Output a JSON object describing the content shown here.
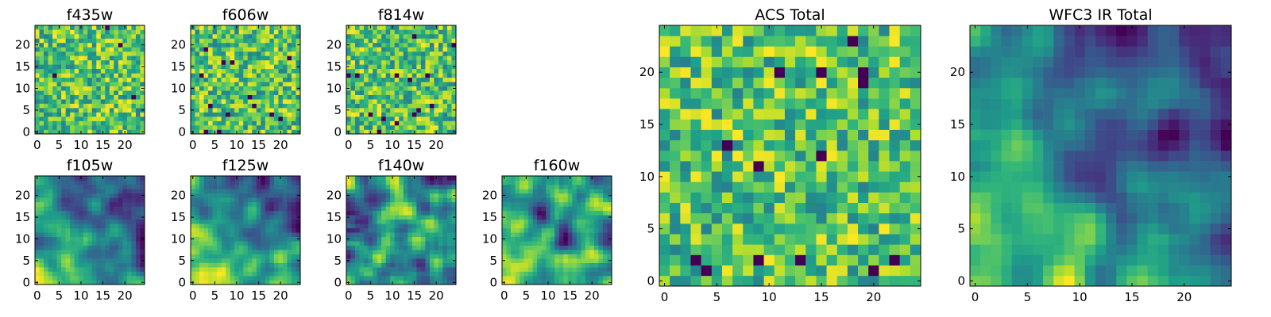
{
  "colormap": "viridis",
  "chart_data": [
    {
      "type": "heatmap",
      "title": "f435w",
      "grid": [
        25,
        25
      ],
      "xticks": [
        0,
        5,
        10,
        15,
        20
      ],
      "yticks": [
        0,
        5,
        10,
        15,
        20
      ],
      "xlim": [
        -0.5,
        24.5
      ],
      "ylim": [
        -0.5,
        24.5
      ],
      "pattern": "noise"
    },
    {
      "type": "heatmap",
      "title": "f606w",
      "grid": [
        25,
        25
      ],
      "xticks": [
        0,
        5,
        10,
        15,
        20
      ],
      "yticks": [
        0,
        5,
        10,
        15,
        20
      ],
      "xlim": [
        -0.5,
        24.5
      ],
      "ylim": [
        -0.5,
        24.5
      ],
      "pattern": "noise"
    },
    {
      "type": "heatmap",
      "title": "f814w",
      "grid": [
        25,
        25
      ],
      "xticks": [
        0,
        5,
        10,
        15,
        20
      ],
      "yticks": [
        0,
        5,
        10,
        15,
        20
      ],
      "xlim": [
        -0.5,
        24.5
      ],
      "ylim": [
        -0.5,
        24.5
      ],
      "pattern": "noise"
    },
    {
      "type": "heatmap",
      "title": "f105w",
      "grid": [
        25,
        25
      ],
      "xticks": [
        0,
        5,
        10,
        15,
        20
      ],
      "yticks": [
        0,
        5,
        10,
        15,
        20
      ],
      "xlim": [
        -0.5,
        24.5
      ],
      "ylim": [
        -0.5,
        24.5
      ],
      "pattern": "smooth-gradient"
    },
    {
      "type": "heatmap",
      "title": "f125w",
      "grid": [
        25,
        25
      ],
      "xticks": [
        0,
        5,
        10,
        15,
        20
      ],
      "yticks": [
        0,
        5,
        10,
        15,
        20
      ],
      "xlim": [
        -0.5,
        24.5
      ],
      "ylim": [
        -0.5,
        24.5
      ],
      "pattern": "smooth-gradient"
    },
    {
      "type": "heatmap",
      "title": "f140w",
      "grid": [
        25,
        25
      ],
      "xticks": [
        0,
        5,
        10,
        15,
        20
      ],
      "yticks": [
        0,
        5,
        10,
        15,
        20
      ],
      "xlim": [
        -0.5,
        24.5
      ],
      "ylim": [
        -0.5,
        24.5
      ],
      "pattern": "smooth"
    },
    {
      "type": "heatmap",
      "title": "f160w",
      "grid": [
        25,
        25
      ],
      "xticks": [
        0,
        5,
        10,
        15,
        20
      ],
      "yticks": [
        0,
        5,
        10,
        15,
        20
      ],
      "xlim": [
        -0.5,
        24.5
      ],
      "ylim": [
        -0.5,
        24.5
      ],
      "pattern": "smooth"
    },
    {
      "type": "heatmap",
      "title": "ACS Total",
      "grid": [
        25,
        25
      ],
      "xticks": [
        0,
        5,
        10,
        15,
        20
      ],
      "yticks": [
        0,
        5,
        10,
        15,
        20
      ],
      "xlim": [
        -0.5,
        24.5
      ],
      "ylim": [
        -0.5,
        24.5
      ],
      "pattern": "noise"
    },
    {
      "type": "heatmap",
      "title": "WFC3 IR Total",
      "grid": [
        25,
        25
      ],
      "xticks": [
        0,
        5,
        10,
        15,
        20
      ],
      "yticks": [
        0,
        5,
        10,
        15,
        20
      ],
      "xlim": [
        -0.5,
        24.5
      ],
      "ylim": [
        -0.5,
        24.5
      ],
      "pattern": "smooth-gradient"
    }
  ]
}
